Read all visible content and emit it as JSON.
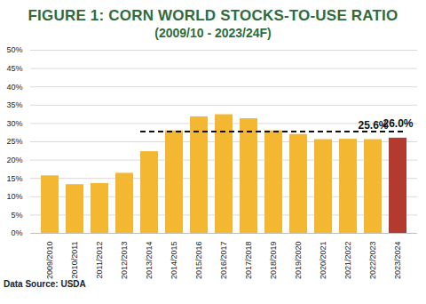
{
  "chart_data": {
    "type": "bar",
    "title": "FIGURE 1: CORN WORLD STOCKS-TO-USE RATIO",
    "subtitle": "(2009/10 - 2023/24F)",
    "caption": "Data Source: USDA",
    "categories": [
      "2009/2010",
      "2010/2011",
      "2011/2012",
      "2012/2013",
      "2013/2014",
      "2014/2015",
      "2015/2016",
      "2016/2017",
      "2017/2018",
      "2018/2019",
      "2019/2020",
      "2020/2021",
      "2021/2022",
      "2022/2023",
      "2023/2024"
    ],
    "values": [
      15.7,
      13.3,
      13.6,
      16.4,
      22.3,
      28.0,
      31.8,
      32.4,
      31.3,
      28.0,
      27.0,
      25.6,
      25.7,
      25.6,
      26.0
    ],
    "value_labels": [
      null,
      null,
      null,
      null,
      null,
      null,
      null,
      null,
      null,
      null,
      null,
      null,
      null,
      "25.6%",
      "26.0%"
    ],
    "data_labels": true,
    "colors": [
      "#f4b731",
      "#f4b731",
      "#f4b731",
      "#f4b731",
      "#f4b731",
      "#f4b731",
      "#f4b731",
      "#f4b731",
      "#f4b731",
      "#f4b731",
      "#f4b731",
      "#f4b731",
      "#f4b731",
      "#f4b731",
      "#b23a2f"
    ],
    "ylim": [
      0,
      50
    ],
    "yticks": [
      {
        "value": 0,
        "label": "0%"
      },
      {
        "value": 5,
        "label": "5%"
      },
      {
        "value": 10,
        "label": "10%"
      },
      {
        "value": 15,
        "label": "15%"
      },
      {
        "value": 20,
        "label": "20%"
      },
      {
        "value": 25,
        "label": "25%"
      },
      {
        "value": 30,
        "label": "30%"
      },
      {
        "value": 35,
        "label": "35%"
      },
      {
        "value": 40,
        "label": "40%"
      },
      {
        "value": 45,
        "label": "45%"
      },
      {
        "value": 50,
        "label": "50%"
      }
    ],
    "grid": true,
    "reference_line": {
      "value": 27.8,
      "from": "2013/2014",
      "to": "2023/2024",
      "line_style": "dashed"
    }
  }
}
